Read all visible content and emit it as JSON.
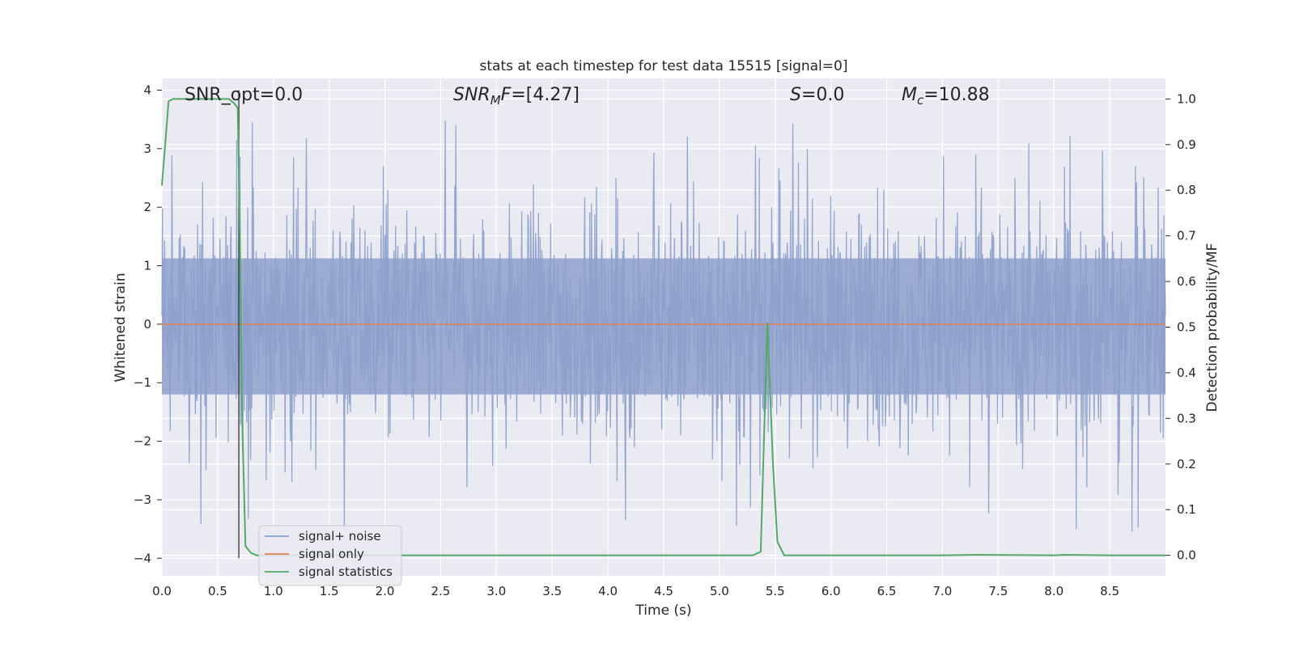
{
  "chart_data": {
    "type": "line",
    "title": "stats at each timestep for test data 15515 [signal=0]",
    "xlabel": "Time (s)",
    "ylabel": "Whitened strain",
    "y2label": "Detection probability/MF",
    "xlim": [
      0.0,
      9.0
    ],
    "ylim": [
      -4.3,
      4.2
    ],
    "y2lim": [
      -0.045,
      1.045
    ],
    "xticks": [
      "0.0",
      "0.5",
      "1.0",
      "1.5",
      "2.0",
      "2.5",
      "3.0",
      "3.5",
      "4.0",
      "4.5",
      "5.0",
      "5.5",
      "6.0",
      "6.5",
      "7.0",
      "7.5",
      "8.0",
      "8.5"
    ],
    "yticks": [
      "4",
      "3",
      "2",
      "1",
      "0",
      "−1",
      "−2",
      "−3",
      "−4"
    ],
    "y2ticks": [
      "1.0",
      "0.9",
      "0.8",
      "0.7",
      "0.6",
      "0.5",
      "0.4",
      "0.3",
      "0.2",
      "0.1",
      "0.0"
    ],
    "grid": true,
    "legend_position": "lower-left",
    "vertical_line_x": 0.69,
    "annotations": {
      "snr_opt": "SNR_opt=0.0",
      "snr_mf_a": "SNR",
      "snr_mf_sub": "M",
      "snr_mf_b": "F",
      "snr_mf_val": "=[4.27]",
      "s_name": "S",
      "s_val": "=0.0",
      "mc_name": "M",
      "mc_sub": "c",
      "mc_val": "=10.88"
    },
    "series": [
      {
        "name": "signal+ noise",
        "color": "#8da0cb",
        "axis": "left",
        "style": "noise",
        "envelope": {
          "typical_upper": 1.5,
          "typical_lower": -1.6,
          "max": 3.8,
          "min": -4.0
        }
      },
      {
        "name": "signal only",
        "color": "#dd8452",
        "axis": "left",
        "x": [
          0.0,
          9.0
        ],
        "y": [
          0.0,
          0.0
        ]
      },
      {
        "name": "signal statistics",
        "color": "#55a868",
        "axis": "right",
        "x": [
          0.0,
          0.03,
          0.06,
          0.1,
          0.2,
          0.3,
          0.4,
          0.5,
          0.6,
          0.65,
          0.68,
          0.7,
          0.72,
          0.75,
          0.8,
          0.85,
          1.0,
          2.0,
          3.0,
          4.0,
          5.0,
          5.3,
          5.37,
          5.43,
          5.48,
          5.52,
          5.58,
          6.0,
          7.0,
          7.3,
          8.0,
          8.1,
          8.5,
          9.0
        ],
        "y": [
          0.81,
          0.9,
          0.995,
          1.0,
          1.0,
          1.0,
          1.0,
          1.0,
          1.0,
          0.99,
          0.98,
          0.7,
          0.3,
          0.02,
          0.005,
          0.0,
          0.0,
          0.0,
          0.0,
          0.0,
          0.0,
          0.0,
          0.008,
          0.51,
          0.2,
          0.03,
          0.0,
          0.0,
          0.0,
          0.001,
          0.0,
          0.001,
          0.0,
          0.0
        ]
      }
    ]
  }
}
